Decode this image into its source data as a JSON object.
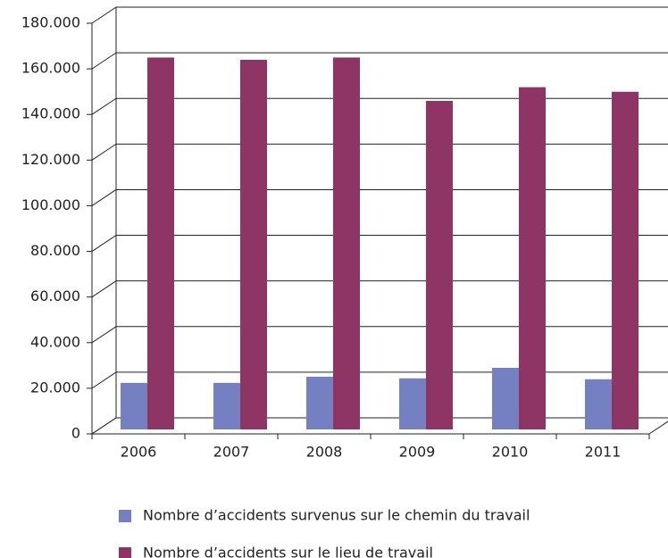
{
  "chart_data": {
    "type": "bar",
    "categories": [
      "2006",
      "2007",
      "2008",
      "2009",
      "2010",
      "2011"
    ],
    "series": [
      {
        "name": "Nombre d’accidents survenus sur le chemin du travail",
        "color": "#7580c2",
        "values": [
          20400,
          20400,
          23100,
          22400,
          27000,
          22000
        ]
      },
      {
        "name": "Nombre d’accidents sur le lieu de travail",
        "color": "#8e3566",
        "values": [
          163000,
          162000,
          163000,
          144000,
          150000,
          148000
        ]
      }
    ],
    "ylim": [
      0,
      180000
    ],
    "yticks": [
      0,
      {
        "value": 20000,
        "label": "20.000"
      },
      {
        "value": 40000,
        "label": "40.000"
      },
      {
        "value": 60000,
        "label": "60.000"
      },
      {
        "value": 80000,
        "label": "80.000"
      },
      {
        "value": 100000,
        "label": "100.000"
      },
      {
        "value": 120000,
        "label": "120.000"
      },
      {
        "value": 140000,
        "label": "140.000"
      },
      {
        "value": 160000,
        "label": "160.000"
      },
      {
        "value": 180000,
        "label": "180.000"
      }
    ],
    "grid": true
  }
}
